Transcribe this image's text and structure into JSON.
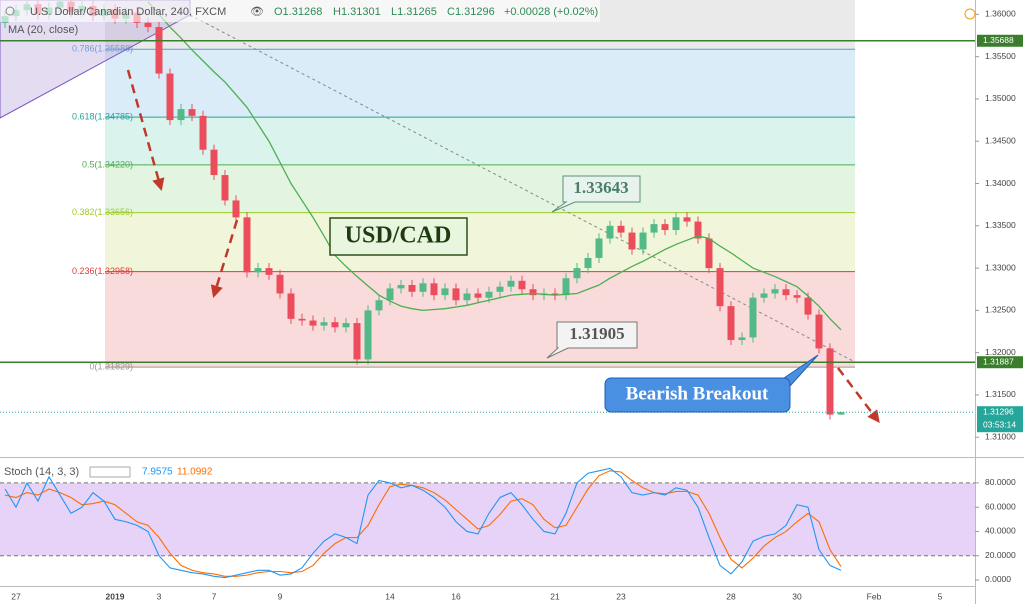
{
  "chart_data": {
    "type": "candlestick",
    "title": "U.S. Dollar/Canadian Dollar, 240, FXCM",
    "ohlc_labels": [
      "O1.31268",
      "H1.31301",
      "L1.31265",
      "C1.31296"
    ],
    "change": "+0.00028 (+0.02%)",
    "up_color": "#53b987",
    "down_color": "#eb4d5c",
    "categories": [
      null,
      "27",
      null,
      null,
      null,
      null,
      null,
      null,
      null,
      null,
      "2019",
      null,
      null,
      null,
      "3",
      null,
      null,
      null,
      null,
      "7",
      null,
      null,
      null,
      null,
      null,
      "9",
      null,
      null,
      null,
      null,
      null,
      null,
      null,
      null,
      null,
      "14",
      null,
      null,
      null,
      null,
      null,
      "16",
      null,
      null,
      null,
      null,
      null,
      null,
      null,
      null,
      "21",
      null,
      null,
      null,
      null,
      null,
      "23",
      null,
      null,
      null,
      null,
      null,
      null,
      null,
      null,
      null,
      "28",
      null,
      null,
      null,
      null,
      null,
      "30",
      null,
      null,
      null,
      null,
      null,
      null,
      "Feb",
      null,
      null,
      null,
      null,
      null,
      "5",
      null,
      null
    ],
    "candles": {
      "open": [
        1.359,
        1.3598,
        1.3605,
        1.3612,
        1.36,
        1.3608,
        1.3615,
        1.3603,
        1.361,
        1.3598,
        1.3606,
        1.3595,
        1.3602,
        1.359,
        1.3585,
        1.353,
        1.3475,
        1.3488,
        1.348,
        1.344,
        1.341,
        1.338,
        1.336,
        1.3295,
        1.33,
        1.3292,
        1.327,
        1.324,
        1.3238,
        1.3232,
        1.3236,
        1.323,
        1.3235,
        1.3192,
        1.325,
        1.3262,
        1.3276,
        1.328,
        1.3272,
        1.3282,
        1.3268,
        1.3276,
        1.3262,
        1.327,
        1.3265,
        1.3272,
        1.3278,
        1.3285,
        1.3275,
        1.3268,
        1.327,
        1.3268,
        1.3288,
        1.33,
        1.3312,
        1.3335,
        1.335,
        1.3342,
        1.3322,
        1.3342,
        1.3352,
        1.3345,
        1.336,
        1.3355,
        1.3335,
        1.33,
        1.3255,
        1.3215,
        1.3218,
        1.3265,
        1.327,
        1.3275,
        1.3268,
        1.3265,
        1.3245,
        1.3205,
        1.31268,
        null,
        null,
        null,
        null,
        null,
        null,
        null,
        null,
        null,
        null,
        null
      ],
      "high": [
        1.3604,
        1.3611,
        1.3618,
        1.3618,
        1.3614,
        1.3621,
        1.3621,
        1.3616,
        1.3616,
        1.3612,
        1.3612,
        1.3608,
        1.3608,
        1.3596,
        1.3591,
        1.3536,
        1.3494,
        1.3494,
        1.3486,
        1.3446,
        1.3416,
        1.3386,
        1.3366,
        1.3306,
        1.3306,
        1.3298,
        1.3276,
        1.3246,
        1.3244,
        1.3242,
        1.3242,
        1.3241,
        1.3241,
        1.3256,
        1.3268,
        1.3282,
        1.3286,
        1.3286,
        1.3288,
        1.3288,
        1.3282,
        1.3282,
        1.3276,
        1.3276,
        1.3278,
        1.3284,
        1.3291,
        1.3291,
        1.3281,
        1.3276,
        1.3276,
        1.3294,
        1.3306,
        1.3318,
        1.3341,
        1.3356,
        1.3356,
        1.3348,
        1.3348,
        1.3358,
        1.3358,
        1.3366,
        1.3366,
        1.3361,
        1.3341,
        1.3306,
        1.3261,
        1.3224,
        1.3271,
        1.3276,
        1.3281,
        1.3281,
        1.3274,
        1.3271,
        1.3251,
        1.3211,
        1.31301,
        null,
        null,
        null,
        null,
        null,
        null,
        null,
        null,
        null,
        null,
        null
      ],
      "low": [
        1.3584,
        1.3592,
        1.3599,
        1.3594,
        1.3594,
        1.3602,
        1.3597,
        1.3597,
        1.3592,
        1.3592,
        1.3589,
        1.3589,
        1.3584,
        1.3579,
        1.3524,
        1.3469,
        1.3469,
        1.3474,
        1.3434,
        1.3404,
        1.3374,
        1.3354,
        1.3289,
        1.3289,
        1.3286,
        1.3264,
        1.3234,
        1.3232,
        1.3226,
        1.3226,
        1.3224,
        1.3224,
        1.3186,
        1.3186,
        1.3244,
        1.3256,
        1.327,
        1.3266,
        1.3266,
        1.3262,
        1.3262,
        1.3256,
        1.3256,
        1.3259,
        1.3259,
        1.3266,
        1.3272,
        1.3269,
        1.3262,
        1.3262,
        1.3262,
        1.3262,
        1.3282,
        1.3294,
        1.3306,
        1.3329,
        1.3336,
        1.3316,
        1.3316,
        1.3336,
        1.3339,
        1.3339,
        1.3349,
        1.3329,
        1.3294,
        1.3249,
        1.3209,
        1.3209,
        1.3212,
        1.3259,
        1.3264,
        1.3262,
        1.3259,
        1.3239,
        1.3199,
        1.3121,
        1.31265,
        null,
        null,
        null,
        null,
        null,
        null,
        null,
        null,
        null,
        null,
        null
      ],
      "close": [
        1.3598,
        1.3605,
        1.3612,
        1.36,
        1.3608,
        1.3615,
        1.3603,
        1.361,
        1.3598,
        1.3606,
        1.3595,
        1.3602,
        1.359,
        1.3585,
        1.353,
        1.3475,
        1.3488,
        1.348,
        1.344,
        1.341,
        1.338,
        1.336,
        1.3295,
        1.33,
        1.3292,
        1.327,
        1.324,
        1.3238,
        1.3232,
        1.3236,
        1.323,
        1.3235,
        1.3192,
        1.325,
        1.3262,
        1.3276,
        1.328,
        1.3272,
        1.3282,
        1.3268,
        1.3276,
        1.3262,
        1.327,
        1.3265,
        1.3272,
        1.3278,
        1.3285,
        1.3275,
        1.3268,
        1.327,
        1.3268,
        1.3288,
        1.33,
        1.3312,
        1.3335,
        1.335,
        1.3342,
        1.3322,
        1.3342,
        1.3352,
        1.3345,
        1.336,
        1.3355,
        1.3335,
        1.33,
        1.3255,
        1.3215,
        1.3218,
        1.3265,
        1.327,
        1.3275,
        1.3268,
        1.3265,
        1.3245,
        1.3205,
        1.31268,
        1.31296,
        null,
        null,
        null,
        null,
        null,
        null,
        null,
        null,
        null,
        null,
        null
      ]
    },
    "ma": {
      "name": "MA (20, close)",
      "color": "#4caf50",
      "values": [
        null,
        null,
        null,
        null,
        null,
        null,
        null,
        null,
        null,
        null,
        null,
        null,
        null,
        1.3615,
        1.36,
        1.3585,
        1.3572,
        1.3558,
        1.3545,
        1.3532,
        1.352,
        1.3505,
        1.349,
        1.347,
        1.345,
        1.3425,
        1.34,
        1.338,
        1.336,
        1.3338,
        1.3315,
        1.3302,
        1.329,
        1.3279,
        1.3268,
        1.3261,
        1.3255,
        1.3252,
        1.325,
        1.3251,
        1.3252,
        1.3254,
        1.3256,
        1.3259,
        1.3262,
        1.3265,
        1.3268,
        1.3269,
        1.327,
        1.3269,
        1.3268,
        1.3269,
        1.327,
        1.3275,
        1.328,
        1.3288,
        1.3295,
        1.3302,
        1.3308,
        1.3315,
        1.3322,
        1.3328,
        1.3333,
        1.3338,
        1.3335,
        1.3326,
        1.3318,
        1.3309,
        1.33,
        1.3295,
        1.329,
        1.3284,
        1.3278,
        1.3267,
        1.3255,
        1.324,
        1.3227,
        null,
        null,
        null,
        null,
        null,
        null,
        null,
        null,
        null,
        null,
        null
      ]
    },
    "ylim": [
      1.3079,
      1.3617
    ],
    "yticks": [
      {
        "value": 1.31,
        "label": "1.31000"
      },
      {
        "value": 1.315,
        "label": "1.31500"
      },
      {
        "value": 1.32,
        "label": "1.32000"
      },
      {
        "value": 1.325,
        "label": "1.32500"
      },
      {
        "value": 1.33,
        "label": "1.33000"
      },
      {
        "value": 1.335,
        "label": "1.33500"
      },
      {
        "value": 1.34,
        "label": "1.34000"
      },
      {
        "value": 1.345,
        "label": "1.34500"
      },
      {
        "value": 1.35,
        "label": "1.35000"
      },
      {
        "value": 1.355,
        "label": "1.35500"
      },
      {
        "value": 1.36,
        "label": "1.36000"
      }
    ],
    "fib_levels": [
      {
        "label": "0.786(1.35588)",
        "value": 1.35588,
        "color": "#5b9bd5"
      },
      {
        "label": "0.618(1.34785)",
        "value": 1.34785,
        "color": "#26a69a"
      },
      {
        "label": "0.5(1.34220)",
        "value": 1.3422,
        "color": "#4caf50"
      },
      {
        "label": "0.382(1.33656)",
        "value": 1.33656,
        "color": "#9ccc2a"
      },
      {
        "label": "0.236(1.32958)",
        "value": 1.32958,
        "color": "#e53935"
      },
      {
        "label": "0(1.31829)",
        "value": 1.31829,
        "color": "#999999"
      }
    ],
    "fib_fills": [
      "#e6e6e6",
      "#d4e9f7",
      "#d4f1ea",
      "#def3dc",
      "#eef5d5",
      "#f8d5d5"
    ],
    "levels": [
      {
        "value": 1.35688,
        "color": "#3a7d2c"
      },
      {
        "value": 1.31887,
        "color": "#3a7d2c"
      }
    ],
    "countdown": "03:53:14",
    "annotations": [
      "1.33643",
      "1.31905",
      "USD/CAD",
      "Bearish Breakout"
    ],
    "stoch": {
      "name": "Stoch (14, 3, 3)",
      "k": {
        "color": "#2196f3",
        "values": [
          75,
          60,
          80,
          65,
          85,
          70,
          55,
          60,
          72,
          65,
          50,
          48,
          45,
          40,
          20,
          10,
          8,
          6,
          5,
          3,
          2,
          4,
          6,
          8,
          8,
          4,
          5,
          10,
          22,
          32,
          38,
          35,
          30,
          70,
          82,
          80,
          76,
          78,
          74,
          68,
          60,
          48,
          40,
          38,
          55,
          68,
          72,
          62,
          50,
          40,
          38,
          55,
          80,
          88,
          90,
          92,
          85,
          72,
          70,
          72,
          70,
          76,
          74,
          60,
          35,
          12,
          5,
          15,
          32,
          36,
          38,
          45,
          62,
          60,
          25,
          12,
          7.9575,
          null,
          null,
          null,
          null,
          null,
          null,
          null,
          null,
          null,
          null,
          null
        ]
      },
      "d": {
        "color": "#ff6d00",
        "values": [
          70,
          68,
          72,
          70,
          75,
          72,
          68,
          62,
          63,
          65,
          62,
          55,
          48,
          45,
          35,
          22,
          12,
          8,
          6,
          5,
          3,
          3,
          4,
          6,
          7,
          7,
          6,
          7,
          12,
          22,
          30,
          35,
          35,
          45,
          62,
          77,
          79,
          78,
          76,
          72,
          66,
          58,
          50,
          42,
          45,
          54,
          65,
          67,
          62,
          50,
          43,
          45,
          60,
          75,
          86,
          90,
          89,
          82,
          76,
          72,
          71,
          73,
          73,
          70,
          55,
          35,
          17,
          10,
          18,
          28,
          35,
          40,
          48,
          55,
          48,
          25,
          11.0992,
          null,
          null,
          null,
          null,
          null,
          null,
          null,
          null,
          null,
          null,
          null
        ]
      },
      "ylim": [
        -9.9,
        98.9
      ],
      "yticks": [
        {
          "value": 0,
          "label": "0.0000"
        },
        {
          "value": 20,
          "label": "20.0000"
        },
        {
          "value": 40,
          "label": "40.0000"
        },
        {
          "value": 60,
          "label": "60.0000"
        },
        {
          "value": 80,
          "label": "80.0000"
        }
      ],
      "band": [
        20,
        80
      ]
    }
  }
}
